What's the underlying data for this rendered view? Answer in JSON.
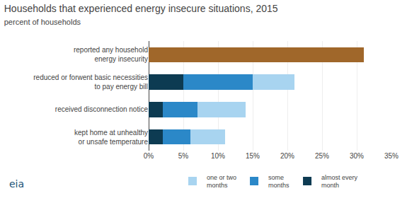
{
  "chart_data": {
    "type": "bar",
    "orientation": "horizontal",
    "stacked": true,
    "title": "Households that experienced energy insecure situations, 2015",
    "subtitle": "percent of households",
    "categories": [
      "reported any household\nenergy insecurity",
      "reduced or forwent basic necessities\nto pay energy bill",
      "received disconnection notice",
      "kept home at unhealthy\nor unsafe temperature"
    ],
    "series": [
      {
        "color": "#a0672a",
        "values": [
          31,
          null,
          null,
          null
        ]
      },
      {
        "name": "almost every\nmonth",
        "color": "#0d3b52",
        "values": [
          null,
          5,
          2,
          2
        ]
      },
      {
        "name": "some\nmonths",
        "color": "#2b88c8",
        "values": [
          null,
          10,
          5,
          4
        ]
      },
      {
        "name": "one or two\nmonths",
        "color": "#a8d4f0",
        "values": [
          null,
          6,
          7,
          5
        ]
      }
    ],
    "xlim": [
      0,
      35
    ],
    "xticks": [
      {
        "value": 0,
        "label": "0%"
      },
      {
        "value": 5,
        "label": "5%"
      },
      {
        "value": 10,
        "label": "10%"
      },
      {
        "value": 15,
        "label": "15%"
      },
      {
        "value": 20,
        "label": "20%"
      },
      {
        "value": 25,
        "label": "25%"
      },
      {
        "value": 30,
        "label": "30%"
      },
      {
        "value": 35,
        "label": "35%"
      }
    ],
    "grid": true,
    "legend": "bottom",
    "annotations": [
      "eia"
    ]
  }
}
